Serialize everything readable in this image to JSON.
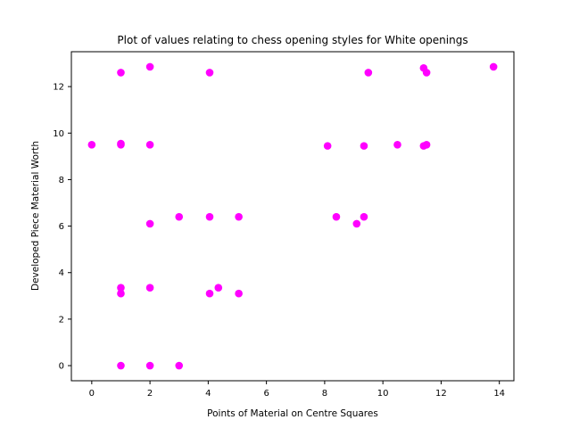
{
  "chart_data": {
    "type": "scatter",
    "title": "Plot of values relating to chess opening styles for White openings",
    "xlabel": "Points of Material on Centre Squares",
    "ylabel": "Developed Piece Material Worth",
    "xlim": [
      -0.7,
      14.5
    ],
    "ylim": [
      -0.65,
      13.5
    ],
    "xticks": [
      0,
      2,
      4,
      6,
      8,
      10,
      12,
      14
    ],
    "yticks": [
      0,
      2,
      4,
      6,
      8,
      10,
      12
    ],
    "grid": false,
    "marker_color": "#ff00ff",
    "points": [
      {
        "x": 1.0,
        "y": 12.6
      },
      {
        "x": 2.0,
        "y": 12.85
      },
      {
        "x": 4.05,
        "y": 12.6
      },
      {
        "x": 9.5,
        "y": 12.6
      },
      {
        "x": 11.4,
        "y": 12.8
      },
      {
        "x": 11.5,
        "y": 12.6
      },
      {
        "x": 13.8,
        "y": 12.85
      },
      {
        "x": 0.0,
        "y": 9.5
      },
      {
        "x": 1.0,
        "y": 9.5
      },
      {
        "x": 1.0,
        "y": 9.55
      },
      {
        "x": 2.0,
        "y": 9.5
      },
      {
        "x": 8.1,
        "y": 9.45
      },
      {
        "x": 9.35,
        "y": 9.45
      },
      {
        "x": 10.5,
        "y": 9.5
      },
      {
        "x": 11.4,
        "y": 9.45
      },
      {
        "x": 11.5,
        "y": 9.5
      },
      {
        "x": 2.0,
        "y": 6.1
      },
      {
        "x": 3.0,
        "y": 6.4
      },
      {
        "x": 4.05,
        "y": 6.4
      },
      {
        "x": 5.05,
        "y": 6.4
      },
      {
        "x": 8.4,
        "y": 6.4
      },
      {
        "x": 9.1,
        "y": 6.1
      },
      {
        "x": 9.35,
        "y": 6.4
      },
      {
        "x": 1.0,
        "y": 3.35
      },
      {
        "x": 1.0,
        "y": 3.1
      },
      {
        "x": 2.0,
        "y": 3.35
      },
      {
        "x": 4.05,
        "y": 3.1
      },
      {
        "x": 4.35,
        "y": 3.35
      },
      {
        "x": 5.05,
        "y": 3.1
      },
      {
        "x": 1.0,
        "y": 0.0
      },
      {
        "x": 2.0,
        "y": 0.0
      },
      {
        "x": 3.0,
        "y": 0.0
      }
    ]
  }
}
